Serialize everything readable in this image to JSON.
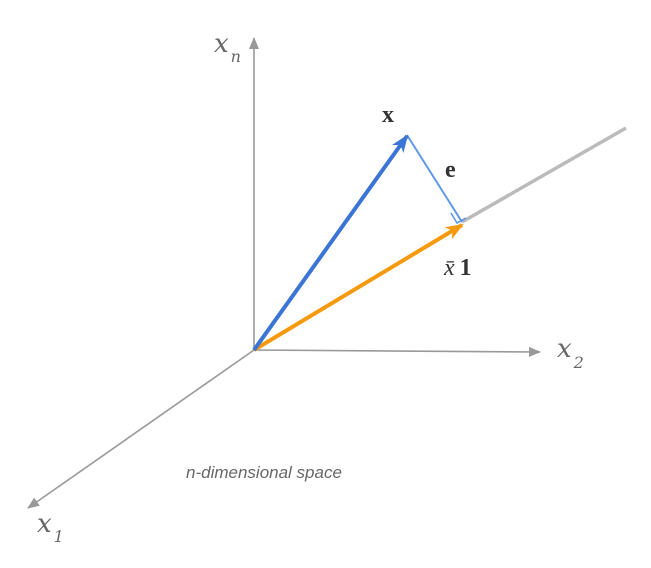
{
  "colors": {
    "axis": "#999999",
    "axis_text": "#666666",
    "line": "#bbbbbb",
    "vector_x": "#3a75d6",
    "residual_e": "#5f98e8",
    "mean_vector": "#f59a0f",
    "label": "#333333"
  },
  "axes": {
    "x_n": {
      "symbol": "x",
      "subscript": "n"
    },
    "x_2": {
      "symbol": "x",
      "subscript": "2"
    },
    "x_1": {
      "symbol": "x",
      "subscript": "1"
    }
  },
  "vectors": {
    "x": {
      "label": "x"
    },
    "e": {
      "label": "e"
    },
    "mean": {
      "symbol": "x̄",
      "one": "1"
    }
  },
  "caption": "n-dimensional space"
}
